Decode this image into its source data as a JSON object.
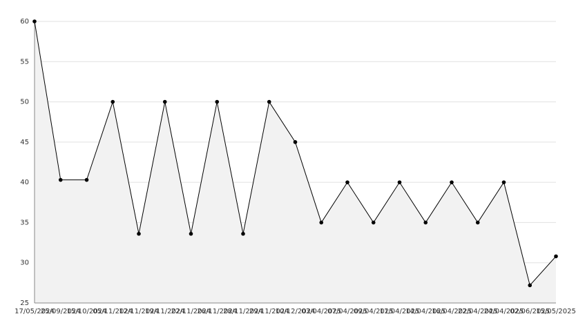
{
  "chart_data": {
    "type": "line",
    "categories": [
      "17/05/2024",
      "25/09/2024",
      "15/10/2024",
      "05/11/2024",
      "12/11/2024",
      "19/11/2024",
      "22/11/2024",
      "26/11/2024",
      "28/11/2024",
      "29/11/2024",
      "10/12/2024",
      "03/04/2025",
      "07/04/2025",
      "09/04/2025",
      "11/04/2025",
      "14/04/2025",
      "16/04/2025",
      "22/04/2025",
      "24/04/2025",
      "02/06/2025",
      "15/05/2025"
    ],
    "values": [
      60,
      40.3,
      40.3,
      50,
      33.6,
      50,
      33.6,
      50,
      33.6,
      50,
      45,
      35,
      40,
      35,
      40,
      35,
      40,
      35,
      40,
      27.2,
      30.8
    ],
    "color": "#000000",
    "fill": "#f2f2f2",
    "ylim": [
      25,
      60
    ],
    "yticks": [
      25,
      30,
      35,
      40,
      45,
      50,
      55,
      60
    ],
    "grid": true
  }
}
